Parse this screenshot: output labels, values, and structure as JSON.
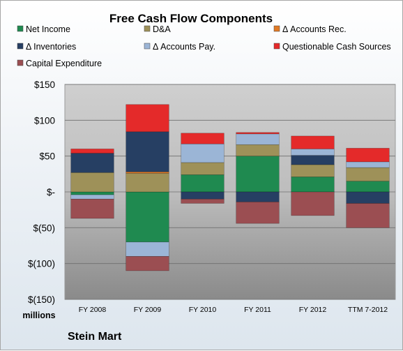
{
  "chart_data": {
    "type": "bar",
    "stacked": true,
    "title": "Free Cash Flow Components",
    "units_label": "millions",
    "company": "Stein Mart",
    "categories": [
      "FY 2008",
      "FY 2009",
      "FY 2010",
      "FY 2011",
      "FY 2012",
      "TTM 7-2012"
    ],
    "ylim": [
      -150,
      150
    ],
    "yticks": [
      150,
      100,
      50,
      0,
      -50,
      -100,
      -150
    ],
    "ytick_labels": [
      "$150",
      "$100",
      "$50",
      "$-",
      "$(50)",
      "$(100)",
      "$(150)"
    ],
    "legend_position": "top",
    "series": [
      {
        "name": "Net Income",
        "color": "#1f8a50",
        "values": [
          -4,
          -70,
          24,
          50,
          21,
          15
        ]
      },
      {
        "name": "D&A",
        "color": "#9e9159",
        "values": [
          27,
          26,
          17,
          16,
          17,
          19
        ]
      },
      {
        "name": "Δ Accounts Rec.",
        "color": "#e07a26",
        "values": [
          0,
          2,
          0,
          0,
          0,
          0
        ]
      },
      {
        "name": "Δ Inventories",
        "color": "#263f63",
        "values": [
          27,
          56,
          -10,
          -14,
          13,
          -16
        ]
      },
      {
        "name": "Δ Accounts Pay.",
        "color": "#9bb5d6",
        "values": [
          -6,
          -20,
          26,
          15,
          9,
          8
        ]
      },
      {
        "name": "Questionable Cash Sources",
        "color": "#e42a2a",
        "values": [
          6,
          38,
          15,
          2,
          18,
          19
        ]
      },
      {
        "name": "Capital Expenditure",
        "color": "#9b4e52",
        "values": [
          -27,
          -20,
          -6,
          -30,
          -33,
          -34
        ]
      }
    ]
  }
}
